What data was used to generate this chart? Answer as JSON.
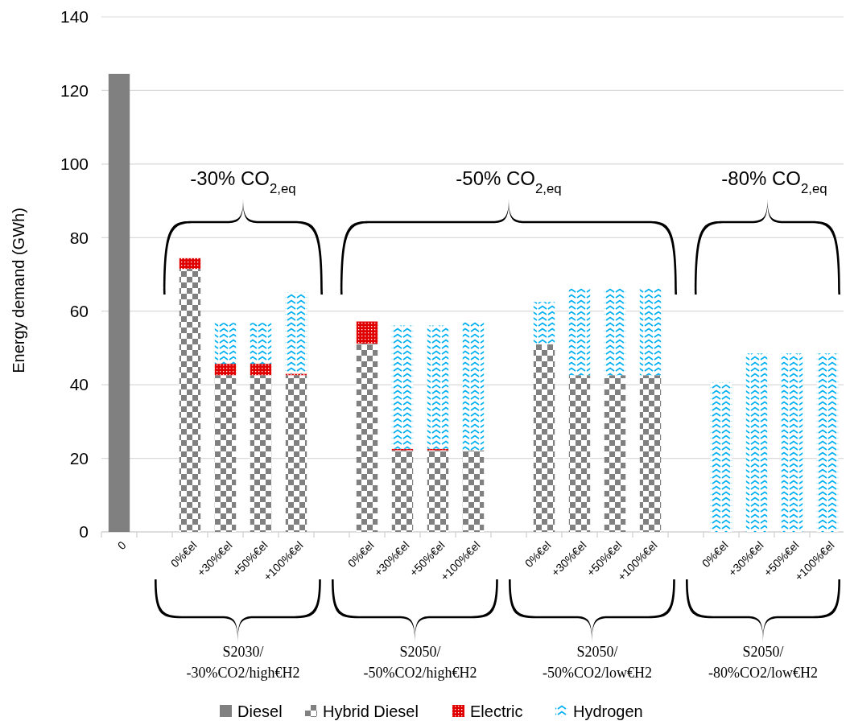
{
  "chart_data": {
    "type": "bar",
    "stacked": true,
    "ylabel": "Energy demand (GWh)",
    "categories": [
      "0",
      null,
      "0%€el",
      "+30%€el",
      "+50%€el",
      "+100%€el",
      null,
      "0%€el",
      "+30%€el",
      "+50%€el",
      "+100%€el",
      null,
      "0%€el",
      "+30%€el",
      "+50%€el",
      "+100%€el",
      null,
      "0%€el",
      "+30%€el",
      "+50%€el",
      "+100%€el"
    ],
    "series": [
      {
        "name": "Diesel",
        "color": "#808080",
        "values": [
          124.5,
          null,
          null,
          null,
          null,
          null,
          null,
          null,
          null,
          null,
          null,
          null,
          null,
          null,
          null,
          null,
          null,
          null,
          null,
          null,
          null
        ]
      },
      {
        "name": "Hybrid Diesel",
        "color": "#808080",
        "values": [
          null,
          null,
          71.5,
          42.6,
          42.6,
          42.6,
          null,
          51.2,
          22.2,
          22.2,
          22.2,
          null,
          51,
          42.6,
          42.6,
          42.6,
          null,
          null,
          null,
          null,
          null
        ]
      },
      {
        "name": "Electric",
        "color": "#e00000",
        "values": [
          null,
          null,
          2.9,
          3.1,
          3.1,
          0.4,
          null,
          6,
          0.4,
          0.4,
          null,
          null,
          null,
          null,
          null,
          null,
          null,
          null,
          null,
          null,
          null
        ]
      },
      {
        "name": "Hydrogen",
        "color": "#00b0f0",
        "values": [
          null,
          null,
          null,
          11.1,
          11.1,
          22.1,
          null,
          null,
          33.5,
          33.5,
          35.2,
          null,
          11.5,
          23.6,
          23.6,
          23.6,
          null,
          40.7,
          48.5,
          48.5,
          48.5
        ]
      }
    ],
    "ylim": [
      0,
      140
    ],
    "yticks": [
      0,
      20,
      40,
      60,
      80,
      100,
      120,
      140
    ],
    "grid": "y",
    "legend": "bottom",
    "annotations": [
      "-30% CO$_{2,eq}$",
      "-50% CO$_{2,eq}$",
      "-80% CO$_{2,eq}$",
      "S2030/\n-30%CO2/high€H2",
      "S2050/\n-50%CO2/high€H2",
      "S2050/\n-50%CO2/low€H2",
      "S2050/\n-80%CO2/low€H2"
    ]
  }
}
